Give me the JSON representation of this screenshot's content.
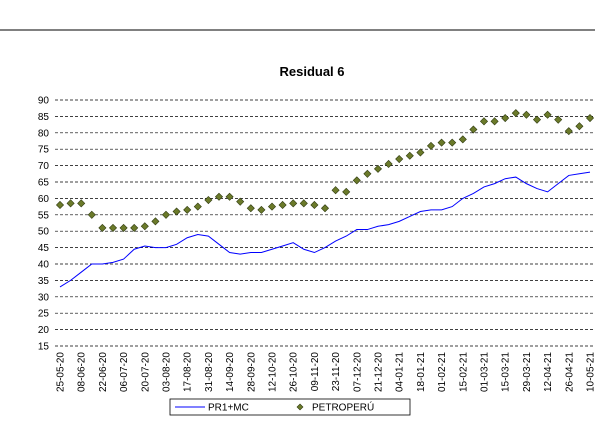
{
  "chart_data": {
    "type": "line",
    "title": "Residual 6",
    "categories": [
      "25-05-20",
      null,
      "08-06-20",
      null,
      "22-06-20",
      null,
      "06-07-20",
      null,
      "20-07-20",
      null,
      "03-08-20",
      null,
      "17-08-20",
      null,
      "31-08-20",
      null,
      "14-09-20",
      null,
      "28-09-20",
      null,
      "12-10-20",
      null,
      "26-10-20",
      null,
      "09-11-20",
      null,
      "23-11-20",
      null,
      "07-12-20",
      null,
      "21-12-20",
      null,
      "04-01-21",
      null,
      "18-01-21",
      null,
      "01-02-21",
      null,
      "15-02-21",
      null,
      "01-03-21",
      null,
      "15-03-21",
      null,
      "29-03-21",
      null,
      "12-04-21",
      null,
      "26-04-21",
      null,
      "10-05-21"
    ],
    "series": [
      {
        "name": "PR1+MC",
        "color": "#0000ff",
        "marker": "none",
        "values": [
          33,
          35,
          37.5,
          40,
          40,
          40.5,
          41.5,
          44.5,
          45.5,
          45,
          45,
          46,
          48,
          49,
          48.5,
          46,
          43.5,
          43,
          43.5,
          43.5,
          44.5,
          45.5,
          46.5,
          44.5,
          43.5,
          45,
          47,
          48.5,
          50.5,
          50.5,
          51.5,
          52,
          53,
          54.5,
          56,
          56.5,
          56.5,
          57.5,
          60,
          61.5,
          63.5,
          64.5,
          66,
          66.5,
          64.5,
          63,
          62,
          64.5,
          67,
          67.5,
          68
        ]
      },
      {
        "name": "PETROPERÚ",
        "color": "#6b7a2a",
        "marker": "diamond",
        "values": [
          58,
          58.5,
          58.5,
          55,
          51,
          51,
          51,
          51,
          51.5,
          53,
          55,
          56,
          56.5,
          57.5,
          59.5,
          60.5,
          60.5,
          59,
          57,
          56.5,
          57.5,
          58,
          58.5,
          58.5,
          58,
          57,
          62.5,
          62,
          65.5,
          67.5,
          69,
          70.5,
          72,
          73,
          74,
          76,
          77,
          77,
          78,
          81,
          83.5,
          83.5,
          84.5,
          86,
          85.5,
          84,
          85.5,
          84,
          80.5,
          82,
          84.5
        ]
      }
    ],
    "ylim": [
      15,
      90
    ],
    "yticks": [
      15,
      20,
      25,
      30,
      35,
      40,
      45,
      50,
      55,
      60,
      65,
      70,
      75,
      80,
      85,
      90
    ],
    "grid": true
  }
}
